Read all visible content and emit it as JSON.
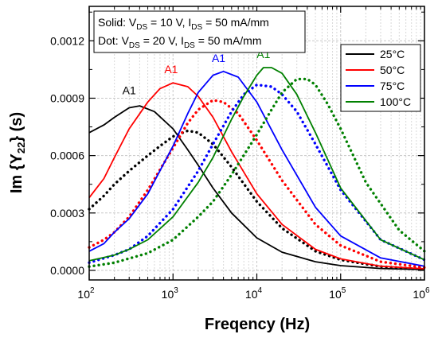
{
  "chart_data": {
    "type": "line",
    "xlabel": "Freqency (Hz)",
    "ylabel": "Im {Y22} (s)",
    "x_scale": "log",
    "xlim": [
      100,
      1000000
    ],
    "ylim": [
      -5e-05,
      0.00138
    ],
    "x_ticks": [
      {
        "value": 100,
        "base": "10",
        "exp": "2"
      },
      {
        "value": 1000,
        "base": "10",
        "exp": "3"
      },
      {
        "value": 10000,
        "base": "10",
        "exp": "4"
      },
      {
        "value": 100000,
        "base": "10",
        "exp": "5"
      },
      {
        "value": 1000000,
        "base": "10",
        "exp": "6"
      }
    ],
    "y_ticks": [
      {
        "value": 0,
        "label": "0.0000"
      },
      {
        "value": 0.0003,
        "label": "0.0003"
      },
      {
        "value": 0.0006,
        "label": "0.0006"
      },
      {
        "value": 0.0009,
        "label": "0.0009"
      },
      {
        "value": 0.0012,
        "label": "0.0012"
      }
    ],
    "grid": true,
    "legend_position": "top-right",
    "legend_entries": [
      "25°C",
      "50°C",
      "75°C",
      "100°C"
    ],
    "colors": {
      "25°C": "#000000",
      "50°C": "#ff0000",
      "75°C": "#0000ff",
      "100°C": "#008000"
    },
    "annotation": {
      "solid_prefix": "Solid: V",
      "solid_vds_value": " = 10 V, I",
      "solid_ids_value": " = 50 mA/mm",
      "dot_prefix": "Dot: V",
      "dot_vds_value": " = 20 V, I",
      "dot_ids_value": " = 50 mA/mm",
      "ds_subscript": "DS"
    },
    "peak_labels": [
      {
        "text": "A1",
        "x": 300,
        "y": 0.00092,
        "series": "25°C"
      },
      {
        "text": "A1",
        "x": 950,
        "y": 0.00103,
        "series": "50°C"
      },
      {
        "text": "A1",
        "x": 3500,
        "y": 0.00109,
        "series": "75°C"
      },
      {
        "text": "A1",
        "x": 12000,
        "y": 0.00111,
        "series": "100°C"
      }
    ],
    "series": [
      {
        "name": "25°C",
        "style": "solid",
        "x": [
          100,
          150,
          200,
          300,
          400,
          600,
          1000,
          1500,
          2000,
          3000,
          5000,
          10000,
          20000,
          50000,
          100000,
          300000,
          1000000
        ],
        "y": [
          0.00072,
          0.00076,
          0.0008,
          0.00085,
          0.00086,
          0.00083,
          0.00074,
          0.00063,
          0.00055,
          0.00043,
          0.0003,
          0.00017,
          9.5e-05,
          4.5e-05,
          2.5e-05,
          1e-05,
          4e-06
        ]
      },
      {
        "name": "25°C",
        "style": "dotted",
        "x": [
          100,
          150,
          200,
          300,
          500,
          700,
          1000,
          1500,
          2000,
          3000,
          5000,
          10000,
          20000,
          50000,
          100000,
          300000,
          1000000
        ],
        "y": [
          0.00032,
          0.00039,
          0.00045,
          0.00052,
          0.0006,
          0.00065,
          0.0007,
          0.00073,
          0.00072,
          0.00066,
          0.00054,
          0.00036,
          0.00022,
          0.0001,
          5.5e-05,
          2e-05,
          6e-06
        ]
      },
      {
        "name": "50°C",
        "style": "solid",
        "x": [
          100,
          150,
          200,
          300,
          500,
          700,
          1000,
          1500,
          2000,
          3000,
          5000,
          10000,
          20000,
          50000,
          100000,
          300000,
          1000000
        ],
        "y": [
          0.00038,
          0.00048,
          0.00059,
          0.00074,
          0.00088,
          0.00095,
          0.00098,
          0.00096,
          0.00091,
          0.0008,
          0.00062,
          0.0004,
          0.00024,
          0.00011,
          6e-05,
          2.2e-05,
          8e-06
        ]
      },
      {
        "name": "50°C",
        "style": "dotted",
        "x": [
          100,
          150,
          200,
          300,
          500,
          1000,
          1500,
          2000,
          3000,
          4000,
          6000,
          10000,
          20000,
          50000,
          100000,
          300000,
          1000000
        ],
        "y": [
          0.00012,
          0.00016,
          0.0002,
          0.00028,
          0.00042,
          0.00064,
          0.00077,
          0.00084,
          0.00089,
          0.00088,
          0.00082,
          0.00068,
          0.00047,
          0.00024,
          0.00013,
          4.5e-05,
          1.5e-05
        ]
      },
      {
        "name": "75°C",
        "style": "solid",
        "x": [
          100,
          150,
          200,
          300,
          500,
          1000,
          1500,
          2000,
          3000,
          4000,
          6000,
          10000,
          20000,
          50000,
          100000,
          300000,
          1000000
        ],
        "y": [
          0.0001,
          0.00014,
          0.0002,
          0.00027,
          0.0004,
          0.00065,
          0.00082,
          0.00093,
          0.00102,
          0.00104,
          0.00101,
          0.00088,
          0.00063,
          0.00033,
          0.00018,
          6.5e-05,
          2.2e-05
        ]
      },
      {
        "name": "75°C",
        "style": "dotted",
        "x": [
          100,
          200,
          300,
          500,
          1000,
          2000,
          3000,
          5000,
          7000,
          10000,
          15000,
          20000,
          30000,
          50000,
          100000,
          300000,
          1000000
        ],
        "y": [
          4e-05,
          8e-05,
          0.00011,
          0.00018,
          0.00032,
          0.00052,
          0.00066,
          0.00083,
          0.00092,
          0.00097,
          0.00096,
          0.00092,
          0.00083,
          0.00066,
          0.00042,
          0.00016,
          5.5e-05
        ]
      },
      {
        "name": "100°C",
        "style": "solid",
        "x": [
          100,
          200,
          300,
          500,
          1000,
          2000,
          3000,
          5000,
          7000,
          10000,
          12000,
          15000,
          20000,
          30000,
          50000,
          100000,
          300000,
          1000000
        ],
        "y": [
          5e-05,
          8e-05,
          0.00011,
          0.00016,
          0.00028,
          0.00046,
          0.00059,
          0.00079,
          0.00091,
          0.00102,
          0.00106,
          0.00106,
          0.00103,
          0.00092,
          0.00072,
          0.00043,
          0.00016,
          5.5e-05
        ]
      },
      {
        "name": "100°C",
        "style": "dotted",
        "x": [
          100,
          200,
          500,
          1000,
          2000,
          3000,
          5000,
          10000,
          15000,
          20000,
          30000,
          40000,
          50000,
          70000,
          100000,
          200000,
          500000,
          1000000
        ],
        "y": [
          2e-05,
          4e-05,
          9e-05,
          0.00016,
          0.00028,
          0.00036,
          0.0005,
          0.00071,
          0.00084,
          0.00093,
          0.001,
          0.001,
          0.00097,
          0.00087,
          0.00074,
          0.00046,
          0.00021,
          0.0001
        ]
      }
    ]
  }
}
